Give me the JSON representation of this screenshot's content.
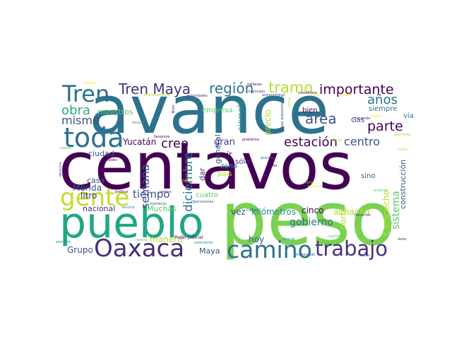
{
  "colors": {
    "background": "#ffffff",
    "dark_purple": "#440154",
    "indigo": "#472d7b",
    "slate_blue": "#3b528b",
    "steel_blue": "#2c728e",
    "teal": "#21918c",
    "sea_green": "#28ae80",
    "green": "#5ec962",
    "lime": "#addc30",
    "yellow": "#fde725"
  },
  "words": [
    {
      "text": "centavos",
      "color": "#440154"
    },
    {
      "text": "avance",
      "color": "#2c728e"
    },
    {
      "text": "peso",
      "color": "#7ad151"
    },
    {
      "text": "pueblo",
      "color": "#21a685"
    },
    {
      "text": "Oaxaca",
      "color": "#472d7b"
    },
    {
      "text": "camino",
      "color": "#2c728e"
    },
    {
      "text": "toda",
      "color": "#2c728e"
    },
    {
      "text": "gente",
      "color": "#c0df25"
    },
    {
      "text": "trabajo",
      "color": "#46327e"
    },
    {
      "text": "Tren",
      "color": "#2c728e"
    },
    {
      "text": "Tren Maya",
      "color": "#46327e"
    },
    {
      "text": "región",
      "color": "#2c728e"
    },
    {
      "text": "tramo",
      "color": "#b5de2b"
    },
    {
      "text": "importante",
      "color": "#440154"
    },
    {
      "text": "años",
      "color": "#2c728e"
    },
    {
      "text": "obra",
      "color": "#28ae80"
    },
    {
      "text": "mismo",
      "color": "#3b528b"
    },
    {
      "text": "parte",
      "color": "#440154"
    },
    {
      "text": "área",
      "color": "#3b528b"
    },
    {
      "text": "estación",
      "color": "#440154"
    },
    {
      "text": "centro",
      "color": "#3b528b"
    },
    {
      "text": "creo",
      "color": "#440154"
    },
    {
      "text": "semana",
      "color": "#3b528b"
    },
    {
      "text": "diciembre",
      "color": "#2c728e"
    },
    {
      "text": "tiempo",
      "color": "#3b528b"
    },
    {
      "text": "gobierno",
      "color": "#2c728e"
    },
    {
      "text": "almacén",
      "color": "#addc30"
    },
    {
      "text": "kilómetros",
      "color": "#21918c"
    },
    {
      "text": "vez",
      "color": "#3b528b"
    },
    {
      "text": "cinco",
      "color": "#440154"
    },
    {
      "text": "construcción",
      "color": "#3b528b"
    },
    {
      "text": "sistema",
      "color": "#5ec962"
    },
    {
      "text": "norte",
      "color": "#addc30"
    },
    {
      "text": "Campeche",
      "color": "#b5de2b"
    },
    {
      "text": "hoy",
      "color": "#3b528b"
    },
    {
      "text": "Grupo",
      "color": "#3b528b"
    },
    {
      "text": "Maya",
      "color": "#3b528b"
    },
    {
      "text": "manera",
      "color": "#b5de2b"
    },
    {
      "text": "Muchas",
      "color": "#5ec962"
    },
    {
      "text": "nacional",
      "color": "#46327e"
    },
    {
      "text": "litro",
      "color": "#46327e"
    },
    {
      "text": "Mérida",
      "color": "#3b528b"
    },
    {
      "text": "casa",
      "color": "#3b528b"
    },
    {
      "text": "Yucatán",
      "color": "#440154"
    },
    {
      "text": "ciudad",
      "color": "#3b528b"
    },
    {
      "text": "ministros",
      "color": "#5ec962"
    },
    {
      "text": "empresa",
      "color": "#5ec962"
    },
    {
      "text": "ejemplo",
      "color": "#21918c"
    },
    {
      "text": "general",
      "color": "#3b528b"
    },
    {
      "text": "gran",
      "color": "#46327e"
    },
    {
      "text": "ir",
      "color": "#440154"
    },
    {
      "text": "dar",
      "color": "#46327e"
    },
    {
      "text": "zona",
      "color": "#21918c"
    },
    {
      "text": "país",
      "color": "#b5de2b"
    },
    {
      "text": "sólo",
      "color": "#46327e"
    },
    {
      "text": "cuatro",
      "color": "#5ec962"
    },
    {
      "text": "bien",
      "color": "#440154"
    },
    {
      "text": "precio",
      "color": "#b5de2b"
    },
    {
      "text": "vía",
      "color": "#2c728e"
    },
    {
      "text": "Gas",
      "color": "#3b528b"
    },
    {
      "text": "siempre",
      "color": "#2c728e"
    },
    {
      "text": "sino",
      "color": "#3b528b"
    },
    {
      "text": "Poder Judicial",
      "color": "#440154"
    },
    {
      "text": "millones",
      "color": "#440154"
    },
    {
      "text": "Calkini",
      "color": "#3b528b"
    },
    {
      "text": "haciendo",
      "color": "#46327e"
    },
    {
      "text": "realidad",
      "color": "#5ec962"
    },
    {
      "text": "trabajando",
      "color": "#3b528b"
    },
    {
      "text": "ofreció",
      "color": "#21918c"
    },
    {
      "text": "menos",
      "color": "#3b528b"
    },
    {
      "text": "debe",
      "color": "#3b528b"
    },
    {
      "text": "Canción",
      "color": "#fde725"
    },
    {
      "text": "prácticamente",
      "color": "#addc30"
    },
    {
      "text": "autoridades",
      "color": "#46327e"
    },
    {
      "text": "municipio",
      "color": "#46327e"
    },
    {
      "text": "arqueológico",
      "color": "#3b528b"
    },
    {
      "text": "noviembre",
      "color": "#440154"
    },
    {
      "text": "iniciar",
      "color": "#b5de2b"
    },
    {
      "text": "zonas arqueológicas",
      "color": "#3b528b"
    },
    {
      "text": "creciendo",
      "color": "#46327e"
    },
    {
      "text": "llevamos",
      "color": "#440154"
    },
    {
      "text": "problema",
      "color": "#440154"
    },
    {
      "text": "proceso",
      "color": "#3b528b"
    },
    {
      "text": "dinero",
      "color": "#b5de2b"
    },
    {
      "text": "suceso",
      "color": "#fde725"
    },
    {
      "text": "cada",
      "color": "#fde725"
    },
    {
      "text": "sigue",
      "color": "#fde725"
    },
    {
      "text": "promedio",
      "color": "#addc30"
    },
    {
      "text": "lleva",
      "color": "#21918c"
    },
    {
      "text": "medio",
      "color": "#440154"
    },
    {
      "text": "política",
      "color": "#440154"
    },
    {
      "text": "vemos",
      "color": "#46327e"
    },
    {
      "text": "cuenta",
      "color": "#fde725"
    },
    {
      "text": "momento",
      "color": "#3b528b"
    },
    {
      "text": "Operaciones",
      "color": "#3b528b"
    },
    {
      "text": "recurso",
      "color": "#21918c"
    },
    {
      "text": "falta",
      "color": "#440154"
    },
    {
      "text": "libre",
      "color": "#5ec962"
    },
    {
      "text": "acuerdo",
      "color": "#5ec962"
    },
    {
      "text": "entrega",
      "color": "#fde725"
    },
    {
      "text": "atención",
      "color": "#21918c"
    },
    {
      "text": "camota",
      "color": "#5ec962"
    },
    {
      "text": "solamente",
      "color": "#21918c"
    },
    {
      "text": "derecho",
      "color": "#3b528b"
    },
    {
      "text": "cuanto",
      "color": "#5ec962"
    },
    {
      "text": "Bren",
      "color": "#440154"
    },
    {
      "text": "costo",
      "color": "#addc30"
    }
  ]
}
